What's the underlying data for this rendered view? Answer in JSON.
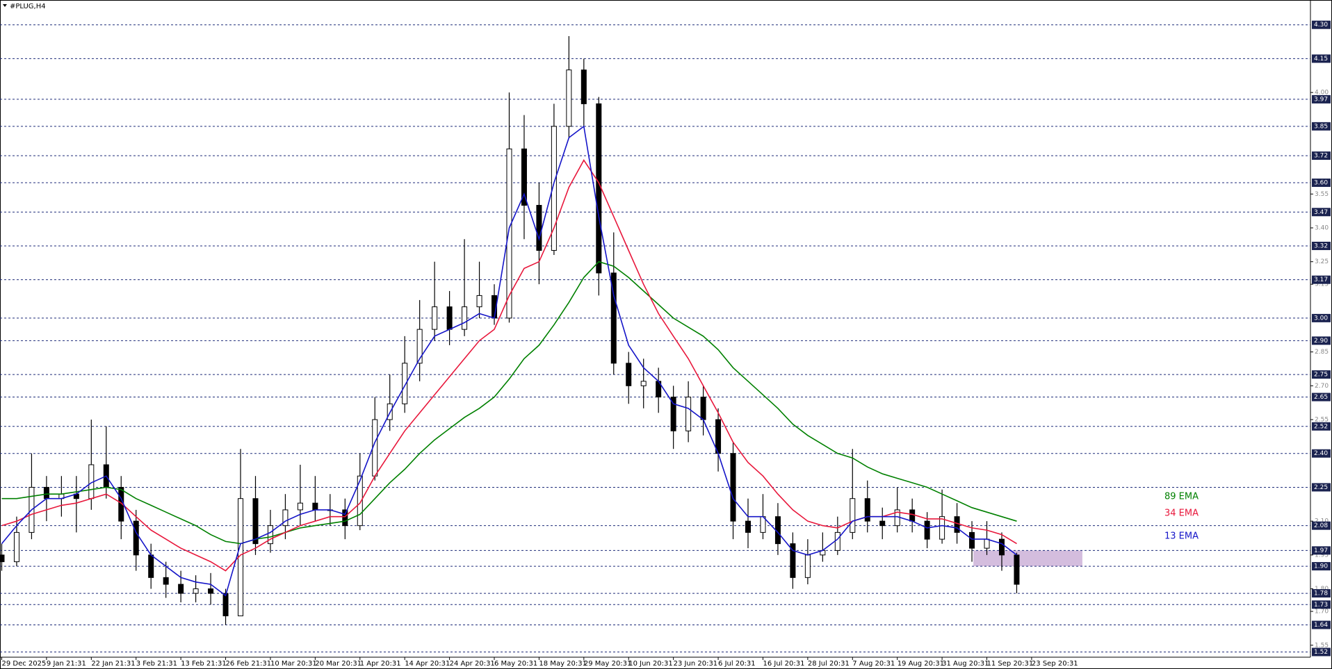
{
  "chart_data": {
    "type": "candlestick",
    "title": "#PLUG,H4",
    "ylim": [
      1.5,
      4.41
    ],
    "yticks": [
      {
        "value": 4,
        "label": "4.00"
      },
      {
        "value": 3.55,
        "label": "3.55"
      },
      {
        "value": 3.4,
        "label": "3.40"
      },
      {
        "value": 3.25,
        "label": "3.25"
      },
      {
        "value": 3.15,
        "label": "3.15"
      },
      {
        "value": 2.85,
        "label": "2.85"
      },
      {
        "value": 2.7,
        "label": "2.70"
      },
      {
        "value": 2.55,
        "label": "2.55"
      },
      {
        "value": 2.1,
        "label": "2.10"
      },
      {
        "value": 1.95,
        "label": "1.95"
      },
      {
        "value": 1.8,
        "label": "1.80"
      },
      {
        "value": 1.7,
        "label": "1.70"
      },
      {
        "value": 1.55,
        "label": "1.55"
      }
    ],
    "levels": [
      {
        "value": 4.3,
        "label": "4.30"
      },
      {
        "value": 4.15,
        "label": "4.15"
      },
      {
        "value": 3.97,
        "label": "3.97"
      },
      {
        "value": 3.85,
        "label": "3.85"
      },
      {
        "value": 3.72,
        "label": "3.72"
      },
      {
        "value": 3.6,
        "label": "3.60"
      },
      {
        "value": 3.47,
        "label": "3.47"
      },
      {
        "value": 3.32,
        "label": "3.32"
      },
      {
        "value": 3.17,
        "label": "3.17"
      },
      {
        "value": 3,
        "label": "3.00"
      },
      {
        "value": 2.9,
        "label": "2.90"
      },
      {
        "value": 2.75,
        "label": "2.75"
      },
      {
        "value": 2.65,
        "label": "2.65"
      },
      {
        "value": 2.52,
        "label": "2.52"
      },
      {
        "value": 2.4,
        "label": "2.40"
      },
      {
        "value": 2.25,
        "label": "2.25"
      },
      {
        "value": 2.08,
        "label": "2.08"
      },
      {
        "value": 1.97,
        "label": "1.97"
      },
      {
        "value": 1.9,
        "label": "1.90"
      },
      {
        "value": 1.78,
        "label": "1.78"
      },
      {
        "value": 1.73,
        "label": "1.73"
      },
      {
        "value": 1.64,
        "label": "1.64"
      },
      {
        "value": 1.52,
        "label": "1.52"
      }
    ],
    "xticks": [
      {
        "value": 0,
        "label": "29 Dec 2025"
      },
      {
        "value": 3,
        "label": "9 Jan 21:31"
      },
      {
        "value": 6,
        "label": "22 Jan 21:31"
      },
      {
        "value": 9,
        "label": "3 Feb 21:31"
      },
      {
        "value": 12,
        "label": "13 Feb 21:31"
      },
      {
        "value": 15,
        "label": "26 Feb 21:31"
      },
      {
        "value": 18,
        "label": "10 Mar 20:31"
      },
      {
        "value": 21,
        "label": "20 Mar 20:31"
      },
      {
        "value": 24,
        "label": "1 Apr 20:31"
      },
      {
        "value": 27,
        "label": "14 Apr 20:31"
      },
      {
        "value": 30,
        "label": "24 Apr 20:31"
      },
      {
        "value": 33,
        "label": "6 May 20:31"
      },
      {
        "value": 36,
        "label": "18 May 20:31"
      },
      {
        "value": 39,
        "label": "29 May 20:31"
      },
      {
        "value": 42,
        "label": "10 Jun 20:31"
      },
      {
        "value": 45,
        "label": "23 Jun 20:31"
      },
      {
        "value": 48,
        "label": "6 Jul 20:31"
      },
      {
        "value": 51,
        "label": "16 Jul 20:31"
      },
      {
        "value": 54,
        "label": "28 Jul 20:31"
      },
      {
        "value": 57,
        "label": "7 Aug 20:31"
      },
      {
        "value": 60,
        "label": "19 Aug 20:31"
      },
      {
        "value": 63,
        "label": "31 Aug 20:31"
      },
      {
        "value": 66,
        "label": "11 Sep 20:31"
      },
      {
        "value": 69,
        "label": "23 Sep 20:31"
      }
    ],
    "ohlc": [
      [
        1.95,
        2.0,
        1.88,
        1.92
      ],
      [
        1.92,
        2.12,
        1.9,
        2.05
      ],
      [
        2.05,
        2.4,
        2.02,
        2.25
      ],
      [
        2.25,
        2.3,
        2.1,
        2.2
      ],
      [
        2.2,
        2.3,
        2.12,
        2.22
      ],
      [
        2.22,
        2.3,
        2.05,
        2.2
      ],
      [
        2.2,
        2.55,
        2.15,
        2.35
      ],
      [
        2.35,
        2.52,
        2.2,
        2.25
      ],
      [
        2.25,
        2.3,
        2.02,
        2.1
      ],
      [
        2.1,
        2.15,
        1.88,
        1.95
      ],
      [
        1.95,
        2.0,
        1.8,
        1.85
      ],
      [
        1.85,
        1.92,
        1.76,
        1.82
      ],
      [
        1.82,
        1.88,
        1.74,
        1.78
      ],
      [
        1.78,
        1.86,
        1.74,
        1.8
      ],
      [
        1.8,
        1.87,
        1.73,
        1.78
      ],
      [
        1.78,
        1.8,
        1.64,
        1.68
      ],
      [
        1.68,
        2.42,
        1.68,
        2.2
      ],
      [
        2.2,
        2.3,
        1.95,
        2.0
      ],
      [
        2.0,
        2.15,
        1.96,
        2.08
      ],
      [
        2.08,
        2.22,
        2.02,
        2.15
      ],
      [
        2.15,
        2.35,
        2.08,
        2.18
      ],
      [
        2.18,
        2.3,
        2.1,
        2.15
      ],
      [
        2.15,
        2.22,
        2.08,
        2.15
      ],
      [
        2.15,
        2.2,
        2.02,
        2.08
      ],
      [
        2.08,
        2.4,
        2.06,
        2.3
      ],
      [
        2.3,
        2.65,
        2.28,
        2.55
      ],
      [
        2.55,
        2.75,
        2.5,
        2.62
      ],
      [
        2.62,
        2.92,
        2.58,
        2.8
      ],
      [
        2.8,
        3.08,
        2.72,
        2.95
      ],
      [
        2.95,
        3.25,
        2.9,
        3.05
      ],
      [
        3.05,
        3.12,
        2.88,
        2.95
      ],
      [
        2.95,
        3.35,
        2.92,
        3.05
      ],
      [
        3.05,
        3.25,
        3.0,
        3.1
      ],
      [
        3.1,
        3.15,
        2.97,
        3.0
      ],
      [
        3.0,
        4.0,
        2.98,
        3.75
      ],
      [
        3.75,
        3.9,
        3.35,
        3.5
      ],
      [
        3.5,
        3.6,
        3.15,
        3.3
      ],
      [
        3.3,
        3.95,
        3.28,
        3.85
      ],
      [
        3.85,
        4.25,
        3.8,
        4.1
      ],
      [
        4.1,
        4.15,
        3.85,
        3.95
      ],
      [
        3.95,
        3.98,
        3.1,
        3.2
      ],
      [
        3.2,
        3.38,
        2.75,
        2.8
      ],
      [
        2.8,
        2.85,
        2.62,
        2.7
      ],
      [
        2.7,
        2.82,
        2.6,
        2.72
      ],
      [
        2.72,
        2.78,
        2.58,
        2.65
      ],
      [
        2.65,
        2.7,
        2.42,
        2.5
      ],
      [
        2.5,
        2.72,
        2.45,
        2.65
      ],
      [
        2.65,
        2.7,
        2.48,
        2.55
      ],
      [
        2.55,
        2.6,
        2.32,
        2.4
      ],
      [
        2.4,
        2.45,
        2.02,
        2.1
      ],
      [
        2.1,
        2.2,
        1.98,
        2.05
      ],
      [
        2.05,
        2.22,
        2.02,
        2.12
      ],
      [
        2.12,
        2.18,
        1.95,
        2.0
      ],
      [
        2.0,
        2.05,
        1.8,
        1.85
      ],
      [
        1.85,
        2.02,
        1.82,
        1.95
      ],
      [
        1.95,
        2.05,
        1.92,
        1.97
      ],
      [
        1.97,
        2.12,
        1.95,
        2.05
      ],
      [
        2.05,
        2.42,
        2.02,
        2.2
      ],
      [
        2.2,
        2.28,
        2.05,
        2.1
      ],
      [
        2.1,
        2.16,
        2.02,
        2.08
      ],
      [
        2.08,
        2.25,
        2.05,
        2.15
      ],
      [
        2.15,
        2.2,
        2.05,
        2.1
      ],
      [
        2.1,
        2.14,
        1.98,
        2.02
      ],
      [
        2.02,
        2.24,
        2.0,
        2.12
      ],
      [
        2.12,
        2.18,
        2.0,
        2.05
      ],
      [
        2.05,
        2.1,
        1.92,
        1.98
      ],
      [
        1.98,
        2.1,
        1.95,
        2.02
      ],
      [
        2.02,
        2.05,
        1.88,
        1.95
      ],
      [
        1.95,
        1.96,
        1.78,
        1.82
      ]
    ],
    "series": [
      {
        "name": "89 EMA",
        "color": "#008000",
        "values": [
          2.2,
          2.2,
          2.21,
          2.22,
          2.22,
          2.23,
          2.24,
          2.25,
          2.24,
          2.2,
          2.17,
          2.14,
          2.11,
          2.08,
          2.04,
          2.01,
          2.0,
          2.02,
          2.03,
          2.05,
          2.07,
          2.08,
          2.09,
          2.1,
          2.13,
          2.2,
          2.27,
          2.33,
          2.4,
          2.46,
          2.51,
          2.56,
          2.6,
          2.65,
          2.73,
          2.82,
          2.88,
          2.97,
          3.07,
          3.18,
          3.25,
          3.23,
          3.18,
          3.12,
          3.06,
          3.0,
          2.96,
          2.92,
          2.86,
          2.78,
          2.72,
          2.66,
          2.6,
          2.53,
          2.48,
          2.44,
          2.4,
          2.38,
          2.34,
          2.31,
          2.29,
          2.27,
          2.25,
          2.22,
          2.19,
          2.16,
          2.14,
          2.12,
          2.1
        ]
      },
      {
        "name": "34 EMA",
        "color": "#e8173b",
        "values": [
          2.08,
          2.1,
          2.13,
          2.15,
          2.17,
          2.18,
          2.2,
          2.22,
          2.18,
          2.12,
          2.06,
          2.02,
          1.98,
          1.95,
          1.92,
          1.88,
          1.95,
          1.98,
          2.02,
          2.05,
          2.08,
          2.1,
          2.12,
          2.12,
          2.18,
          2.3,
          2.4,
          2.5,
          2.58,
          2.66,
          2.74,
          2.82,
          2.9,
          2.95,
          3.1,
          3.22,
          3.25,
          3.4,
          3.58,
          3.7,
          3.6,
          3.45,
          3.3,
          3.15,
          3.02,
          2.92,
          2.82,
          2.7,
          2.58,
          2.45,
          2.36,
          2.3,
          2.22,
          2.15,
          2.1,
          2.08,
          2.07,
          2.1,
          2.12,
          2.12,
          2.14,
          2.13,
          2.11,
          2.11,
          2.09,
          2.07,
          2.06,
          2.04,
          2.0
        ]
      },
      {
        "name": "13 EMA",
        "color": "#1414c8",
        "values": [
          2.0,
          2.08,
          2.15,
          2.2,
          2.2,
          2.22,
          2.27,
          2.3,
          2.2,
          2.05,
          1.95,
          1.9,
          1.85,
          1.83,
          1.82,
          1.77,
          2.0,
          2.02,
          2.05,
          2.1,
          2.13,
          2.15,
          2.15,
          2.13,
          2.28,
          2.45,
          2.58,
          2.7,
          2.82,
          2.92,
          2.95,
          2.98,
          3.02,
          3.0,
          3.4,
          3.55,
          3.35,
          3.6,
          3.8,
          3.85,
          3.45,
          3.1,
          2.88,
          2.78,
          2.72,
          2.62,
          2.6,
          2.55,
          2.4,
          2.2,
          2.12,
          2.12,
          2.05,
          1.97,
          1.95,
          1.97,
          2.02,
          2.1,
          2.12,
          2.12,
          2.12,
          2.1,
          2.07,
          2.08,
          2.07,
          2.02,
          2.02,
          2.0,
          1.95
        ]
      }
    ],
    "zone": [
      1.9,
      1.97
    ],
    "zone_color": "#cdb2d8"
  }
}
